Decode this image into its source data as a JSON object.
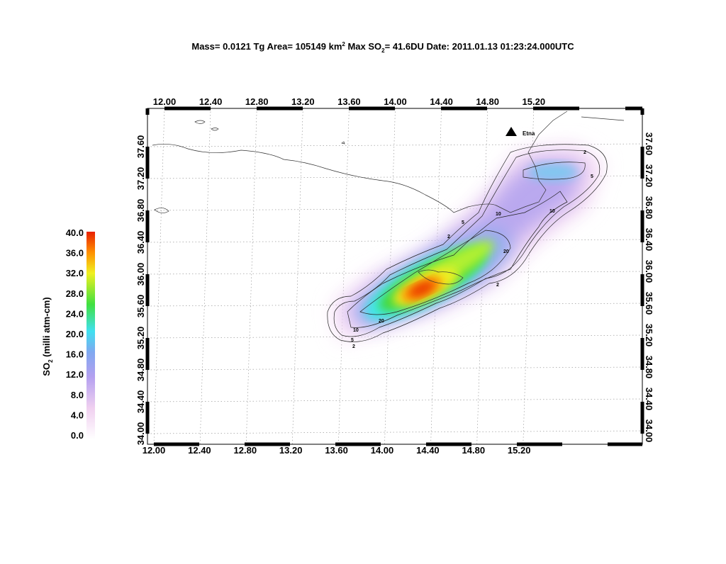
{
  "title": {
    "mass": "Mass= 0.0121 Tg",
    "area": "Area=  105149 km",
    "area_sup": "2",
    "max": "Max SO",
    "max_sub": "2",
    "rest": "= 41.6DU Date: 2011.01.13 01:23:24.000UTC"
  },
  "map": {
    "lon_ticks_top": [
      "12.00",
      "12.40",
      "12.80",
      "13.20",
      "13.60",
      "14.00",
      "14.40",
      "14.80",
      "15.20"
    ],
    "lon_ticks_bottom": [
      "12.00",
      "12.40",
      "12.80",
      "13.20",
      "13.60",
      "14.00",
      "14.40",
      "14.80",
      "15.20"
    ],
    "lat_ticks": [
      "34.00",
      "34.40",
      "34.80",
      "35.20",
      "35.60",
      "36.00",
      "36.40",
      "36.80",
      "37.20",
      "37.60"
    ],
    "volcano": "Etna",
    "contour_labels": [
      "2",
      "5",
      "10",
      "10",
      "5",
      "2",
      "20",
      "2",
      "20",
      "10",
      "5",
      "2"
    ]
  },
  "colorbar": {
    "ticks": [
      "0.0",
      "4.0",
      "8.0",
      "12.0",
      "16.0",
      "20.0",
      "24.0",
      "28.0",
      "32.0",
      "36.0",
      "40.0"
    ],
    "label": "SO",
    "label_sub": "2",
    "label_rest": " (milli atm-cm)"
  }
}
